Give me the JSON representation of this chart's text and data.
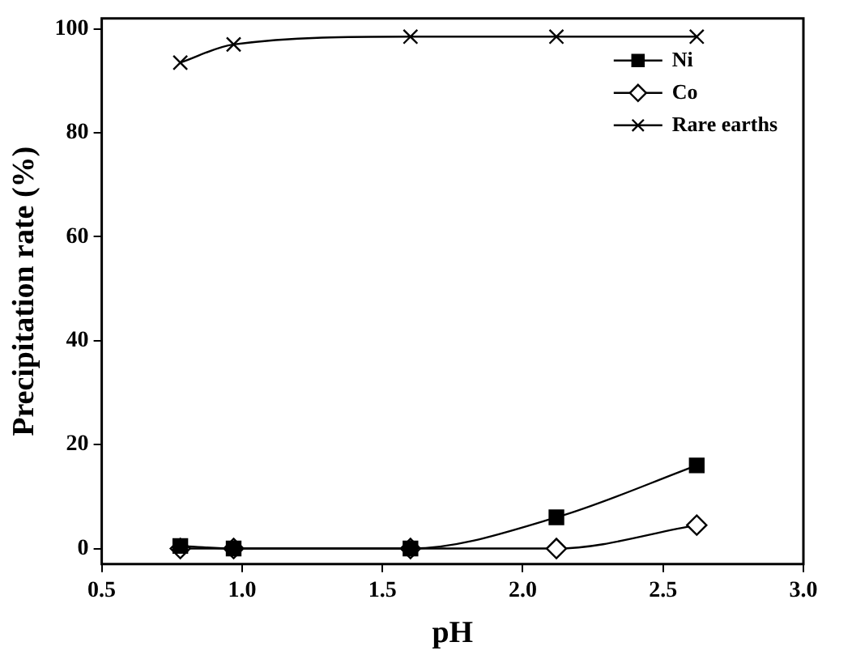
{
  "chart_data": {
    "type": "line",
    "xlabel": "pH",
    "ylabel": "Precipitation rate (%)",
    "xlim": [
      0.5,
      3.0
    ],
    "xticks": [
      {
        "value": 0.5,
        "label": "0.5"
      },
      {
        "value": 1.0,
        "label": "1.0"
      },
      {
        "value": 1.5,
        "label": "1.5"
      },
      {
        "value": 2.0,
        "label": "2.0"
      },
      {
        "value": 2.5,
        "label": "2.5"
      },
      {
        "value": 3.0,
        "label": "3.0"
      }
    ],
    "ylim": [
      -3,
      102
    ],
    "yticks": [
      0,
      20,
      40,
      60,
      80,
      100
    ],
    "x": [
      0.78,
      0.97,
      1.6,
      2.12,
      2.62
    ],
    "series": [
      {
        "name": "Ni",
        "color": "#000000",
        "marker": "square",
        "values": [
          0.5,
          0,
          0,
          6,
          16
        ]
      },
      {
        "name": "Co",
        "color": "#000000",
        "marker": "diamond",
        "values": [
          0,
          0,
          0,
          0,
          4.5
        ]
      },
      {
        "name": "Rare earths",
        "color": "#000000",
        "marker": "cross",
        "values": [
          93.5,
          97,
          98.5,
          98.5,
          98.5
        ]
      }
    ],
    "legend": "top right",
    "grid": false,
    "line_style": "solid"
  }
}
